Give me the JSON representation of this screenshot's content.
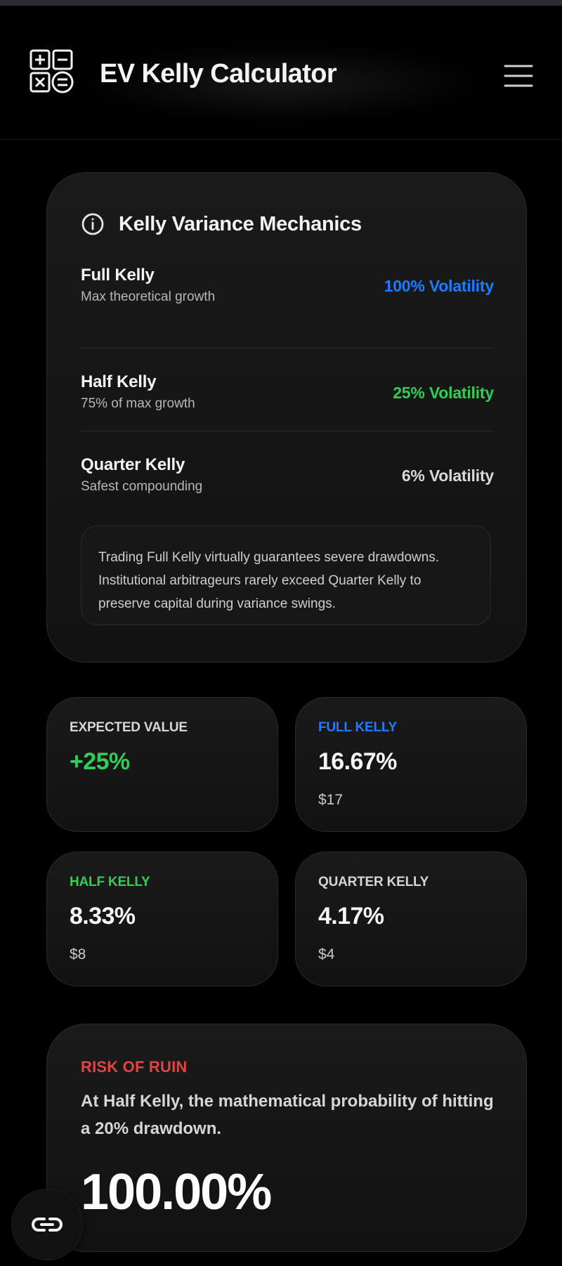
{
  "app": {
    "title": "EV Kelly Calculator",
    "logo_icon": "calculator-icon",
    "menu_icon": "hamburger-menu-icon"
  },
  "mechanics": {
    "title": "Kelly Variance Mechanics",
    "info_icon": "info-icon",
    "rows": [
      {
        "name": "Full Kelly",
        "description": "Max theoretical growth",
        "volatility": "100% Volatility",
        "color": "#1e7bff"
      },
      {
        "name": "Half Kelly",
        "description": "75% of max growth",
        "volatility": "25% Volatility",
        "color": "#2fcf55"
      },
      {
        "name": "Quarter Kelly",
        "description": "Safest compounding",
        "volatility": "6% Volatility",
        "color": "#d9d9d9"
      }
    ],
    "note": "Trading Full Kelly virtually guarantees severe drawdowns. Institutional arbitrageurs rarely exceed Quarter Kelly to preserve capital during variance swings."
  },
  "stats": {
    "expected_value": {
      "label": "EXPECTED VALUE",
      "value": "+25%",
      "color": "#2fcf55"
    },
    "full_kelly": {
      "label": "FULL KELLY",
      "value": "16.67%",
      "amount": "$17",
      "label_color": "#1e7bff"
    },
    "half_kelly": {
      "label": "HALF KELLY",
      "value": "8.33%",
      "amount": "$8",
      "label_color": "#2fcf55"
    },
    "quarter_kelly": {
      "label": "QUARTER KELLY",
      "value": "4.17%",
      "amount": "$4",
      "label_color": "#d6d6d6"
    }
  },
  "risk_of_ruin": {
    "label": "RISK OF RUIN",
    "description": "At Half Kelly, the mathematical probability of hitting a 20% drawdown.",
    "value": "100.00%",
    "label_color": "#e04444"
  },
  "floating_button": {
    "icon": "link-icon"
  }
}
